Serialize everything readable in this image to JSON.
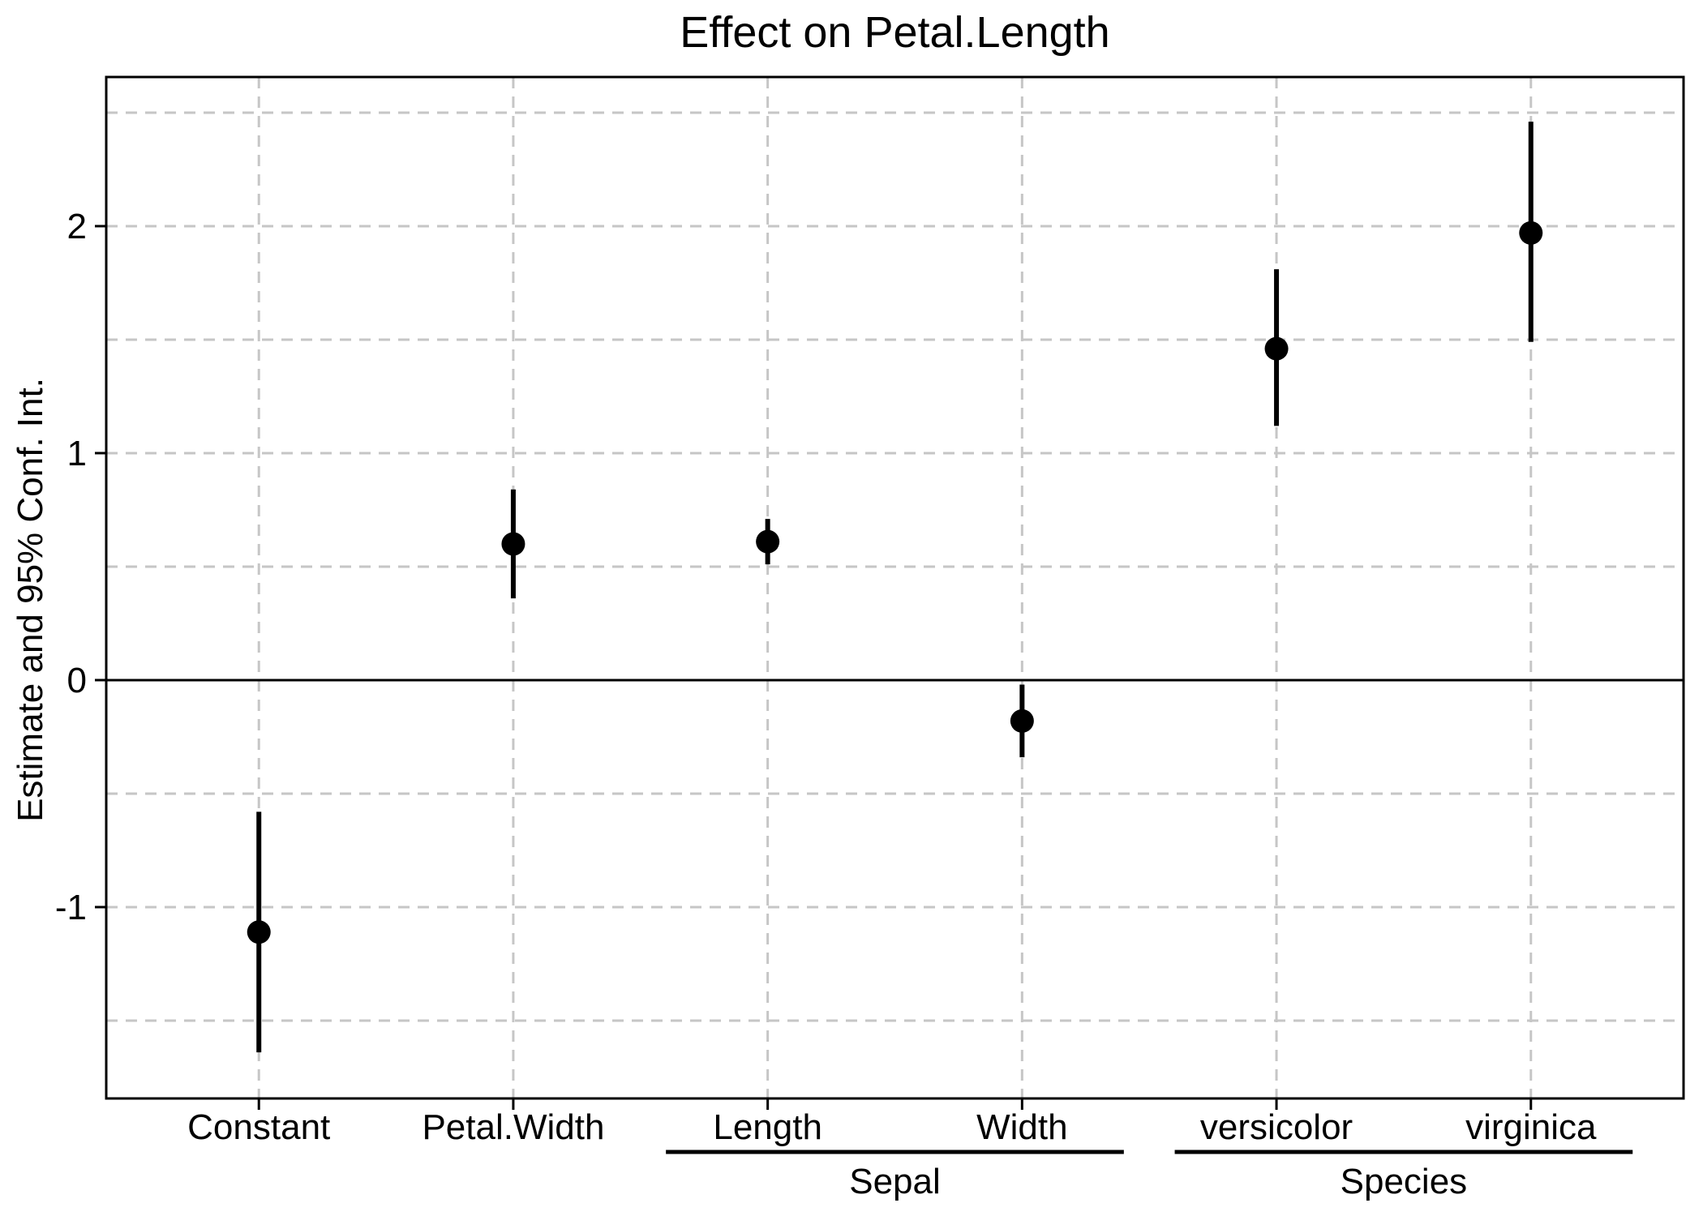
{
  "chart_data": {
    "type": "scatter",
    "subtype": "coefficient-dot-whisker",
    "title": "Effect on Petal.Length",
    "xlabel": "",
    "ylabel": "Estimate and 95% Conf. Int.",
    "ylim": [
      -1.843,
      2.657
    ],
    "yticks": [
      {
        "label": "2",
        "value": 2
      },
      {
        "label": "1",
        "value": 1
      },
      {
        "label": "0",
        "value": 0
      },
      {
        "label": "-1",
        "value": -1
      }
    ],
    "grid_y_dashed": [
      2.5,
      2,
      1.5,
      1,
      0.5,
      -0.5,
      -1,
      -1.5
    ],
    "zero_line_value": 0,
    "grid_style": "dashed horizontal every 0.5 and dashed vertical per category",
    "legend": "none",
    "categories": [
      "Constant",
      "Petal.Width",
      "Length",
      "Width",
      "versicolor",
      "virginica"
    ],
    "groups": [
      {
        "label": "Sepal",
        "from": "Length",
        "to": "Width"
      },
      {
        "label": "Species",
        "from": "versicolor",
        "to": "virginica"
      }
    ],
    "series": [
      {
        "name": "Estimate and 95% Conf. Int.",
        "estimates": [
          -1.11,
          0.6,
          0.61,
          -0.18,
          1.46,
          1.97
        ],
        "ci_lower": [
          -1.64,
          0.36,
          0.51,
          -0.34,
          1.12,
          1.49
        ],
        "ci_upper": [
          -0.58,
          0.84,
          0.71,
          -0.02,
          1.81,
          2.46
        ]
      }
    ],
    "colors": {
      "point": "#000000",
      "ci_bar": "#000000",
      "grid": "#c6c6c6",
      "zero_line": "#000000",
      "panel_border": "#000000",
      "text": "#000000",
      "background": "#ffffff"
    }
  }
}
